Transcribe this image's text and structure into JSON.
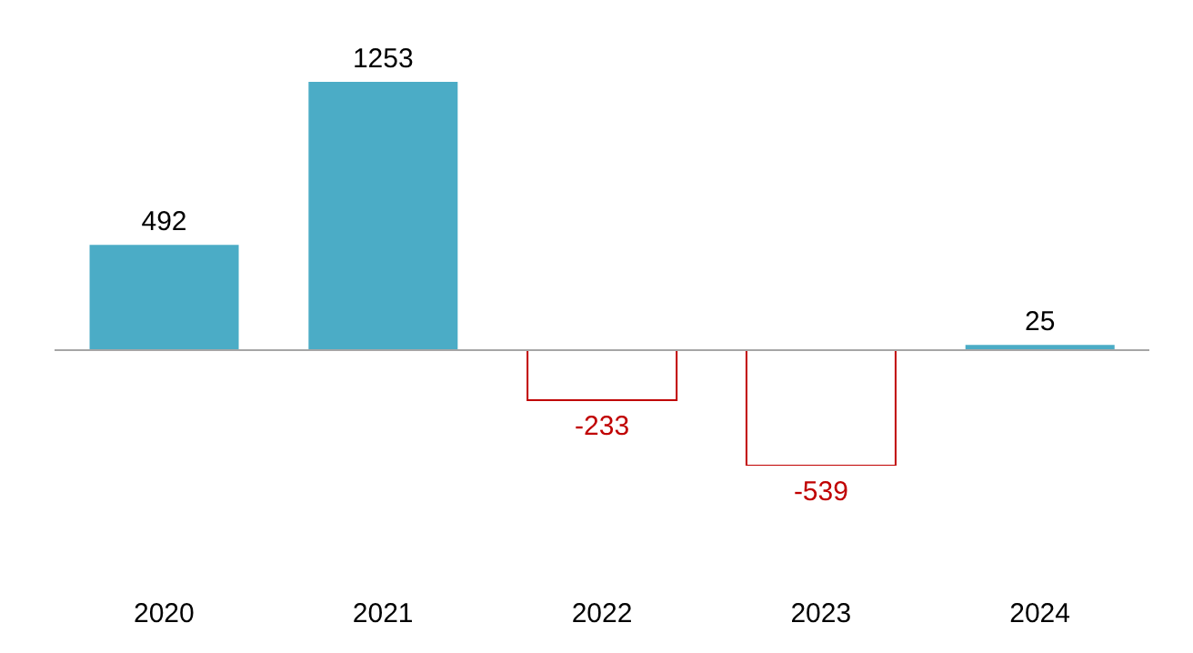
{
  "chart_data": {
    "type": "bar",
    "categories": [
      "2020",
      "2021",
      "2022",
      "2023",
      "2024"
    ],
    "values": [
      492,
      1253,
      -233,
      -539,
      25
    ],
    "colors": [
      "#4bacc6",
      "#4bacc6",
      "#c00000",
      "#c00000",
      "#4bacc6"
    ],
    "data_labels": true
  }
}
